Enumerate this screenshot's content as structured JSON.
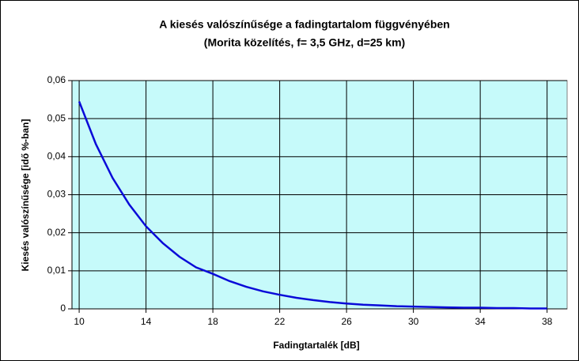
{
  "chart_data": {
    "type": "line",
    "title": "A kiesés valószínűsége a fadingtartalom függvényében",
    "subtitle": "(Morita közelítés, f= 3,5 GHz, d=25 km)",
    "x_label": "Fadingtartalék [dB]",
    "y_label": "Kiesés valószínűsége [idő %-ban]",
    "x": [
      10,
      11,
      12,
      13,
      14,
      15,
      16,
      17,
      18,
      19,
      20,
      21,
      22,
      23,
      24,
      25,
      26,
      27,
      28,
      29,
      30,
      31,
      32,
      33,
      34,
      35,
      36,
      37,
      38
    ],
    "series": [
      {
        "name": "Kiesés valószínűsége",
        "color": "#0a0ad8",
        "values": [
          0.0545,
          0.0433,
          0.0344,
          0.0274,
          0.0217,
          0.0173,
          0.0137,
          0.0109,
          0.0092,
          0.0073,
          0.0058,
          0.0046,
          0.0037,
          0.0029,
          0.0023,
          0.0018,
          0.0014,
          0.0011,
          0.0009,
          0.0007,
          0.0006,
          0.0005,
          0.0004,
          0.0003,
          0.0003,
          0.0002,
          0.0002,
          0.0001,
          0.0001
        ]
      }
    ],
    "xlim": [
      9.57,
      39.2
    ],
    "xticks": [
      10,
      14,
      18,
      22,
      26,
      30,
      34,
      38
    ],
    "ylim": [
      0,
      0.06
    ],
    "yticks": [
      0,
      {
        "value": 0.01,
        "label": "0,01"
      },
      {
        "value": 0.02,
        "label": "0,02"
      },
      {
        "value": 0.03,
        "label": "0,03"
      },
      {
        "value": 0.04,
        "label": "0,04"
      },
      {
        "value": 0.05,
        "label": "0,05"
      },
      {
        "value": 0.06,
        "label": "0,06"
      }
    ],
    "grid": true,
    "plot_background": "#c6fafa"
  }
}
